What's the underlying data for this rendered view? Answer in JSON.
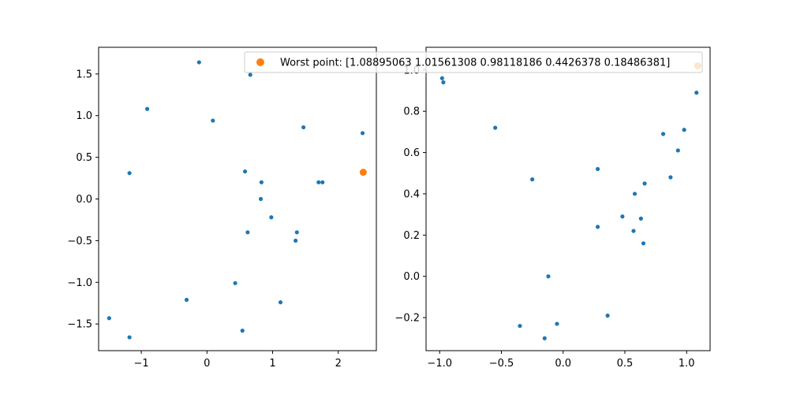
{
  "colors": {
    "series": "#1f77b4",
    "highlight": "#ff7f0e",
    "axes": "#000000",
    "background": "#ffffff"
  },
  "legend": {
    "placement": "top-right of left panel, overlapping right panel",
    "label": "Worst point: [1.08895063 1.01561308 0.98118186 0.4426378  0.18486381]"
  },
  "chart_data": [
    {
      "type": "scatter",
      "xlim": [
        -1.65,
        2.58
      ],
      "ylim": [
        -1.82,
        1.82
      ],
      "x_ticks": [
        -1,
        0,
        1,
        2
      ],
      "x_tick_labels": [
        "−1",
        "0",
        "1",
        "2"
      ],
      "y_ticks": [
        -1.5,
        -1.0,
        -0.5,
        0.0,
        0.5,
        1.0,
        1.5
      ],
      "y_tick_labels": [
        "−1.5",
        "−1.0",
        "−0.5",
        "0.0",
        "0.5",
        "1.0",
        "1.5"
      ],
      "grid": false,
      "series": [
        {
          "x": [
            -0.12,
            0.66,
            -0.91,
            0.09,
            1.47,
            2.37,
            -1.18,
            0.58,
            0.83,
            1.7,
            1.76,
            0.82,
            0.98,
            0.62,
            1.37,
            1.35,
            0.43,
            -0.31,
            1.12,
            -1.49,
            0.54,
            -1.18
          ],
          "y": [
            1.64,
            1.49,
            1.08,
            0.94,
            0.86,
            0.79,
            0.31,
            0.33,
            0.2,
            0.2,
            0.2,
            0.0,
            -0.22,
            -0.4,
            -0.4,
            -0.5,
            -1.01,
            -1.21,
            -1.24,
            -1.43,
            -1.58,
            -1.66
          ]
        },
        {
          "role": "highlight",
          "x": [
            2.38
          ],
          "y": [
            0.32
          ]
        }
      ]
    },
    {
      "type": "scatter",
      "xlim": [
        -1.11,
        1.19
      ],
      "ylim": [
        -0.36,
        1.11
      ],
      "x_ticks": [
        -1.0,
        -0.5,
        0.0,
        0.5,
        1.0
      ],
      "x_tick_labels": [
        "−1.0",
        "−0.5",
        "0.0",
        "0.5",
        "1.0"
      ],
      "y_ticks": [
        -0.2,
        0.0,
        0.2,
        0.4,
        0.6,
        0.8,
        1.0
      ],
      "y_tick_labels": [
        "−0.2",
        "0.0",
        "0.2",
        "0.4",
        "0.6",
        "0.8",
        "1.0"
      ],
      "grid": false,
      "series": [
        {
          "x": [
            -0.97,
            -0.98,
            1.08,
            -0.55,
            0.98,
            0.81,
            0.93,
            0.28,
            0.87,
            -0.25,
            0.66,
            0.58,
            0.48,
            0.63,
            0.28,
            0.57,
            0.65,
            -0.12,
            0.36,
            -0.05,
            -0.35,
            -0.15
          ],
          "y": [
            0.94,
            0.96,
            0.89,
            0.72,
            0.71,
            0.69,
            0.61,
            0.52,
            0.48,
            0.47,
            0.45,
            0.4,
            0.29,
            0.28,
            0.24,
            0.22,
            0.16,
            0.0,
            -0.19,
            -0.23,
            -0.24,
            -0.3
          ]
        },
        {
          "role": "highlight",
          "x": [
            1.09
          ],
          "y": [
            1.02
          ]
        }
      ]
    }
  ]
}
